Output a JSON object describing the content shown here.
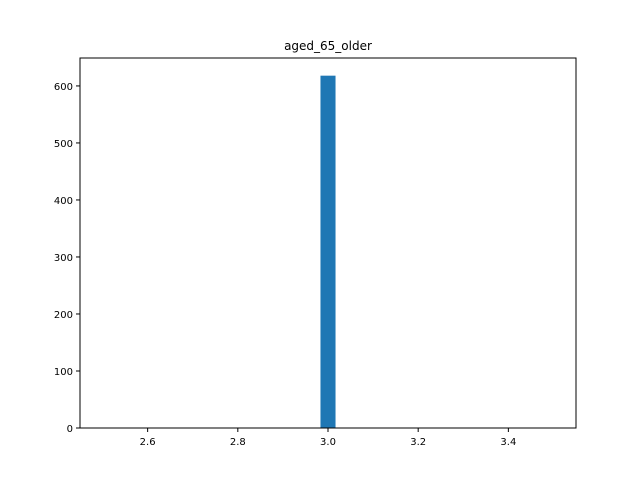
{
  "chart_data": {
    "type": "bar",
    "title": "aged_65_older",
    "xlabel": "",
    "ylabel": "",
    "bins": [
      {
        "x0": 2.9833,
        "x1": 3.0167,
        "count": 618
      }
    ],
    "xlim": [
      2.45,
      3.55
    ],
    "ylim": [
      0,
      649
    ],
    "xticks": [
      2.6,
      2.8,
      3.0,
      3.2,
      3.4
    ],
    "xtick_labels": [
      "2.6",
      "2.8",
      "3.0",
      "3.2",
      "3.4"
    ],
    "yticks": [
      0,
      100,
      200,
      300,
      400,
      500,
      600
    ],
    "ytick_labels": [
      "0",
      "100",
      "200",
      "300",
      "400",
      "500",
      "600"
    ],
    "grid": false,
    "bar_color": "#1f77b4"
  }
}
